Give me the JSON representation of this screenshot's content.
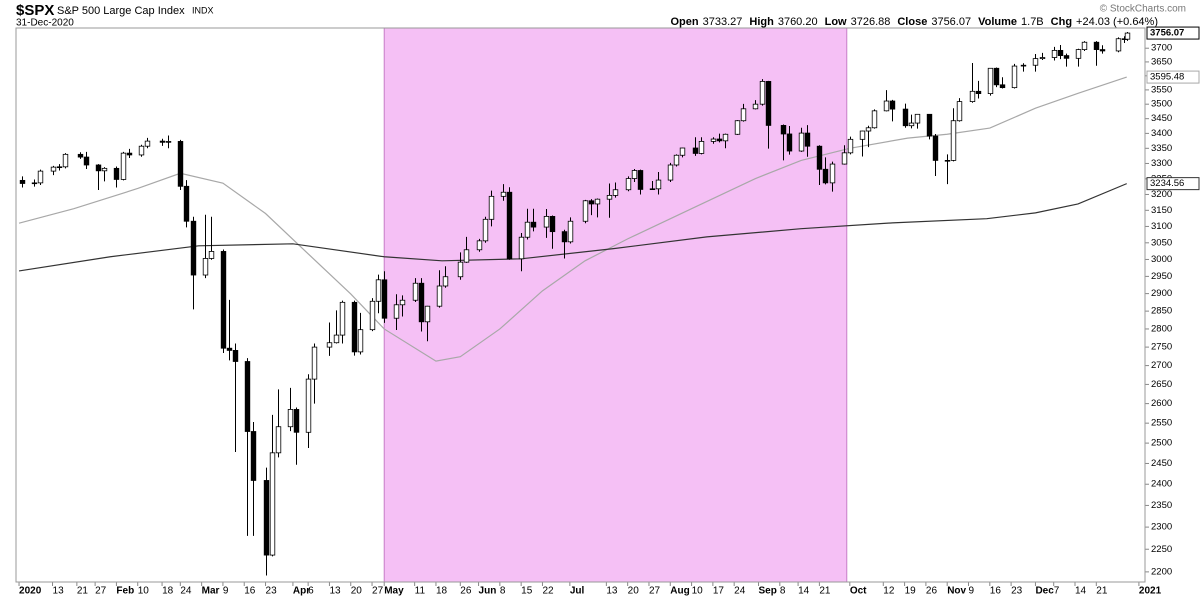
{
  "chart_data": {
    "type": "candlestick",
    "title": "$SPX",
    "subtitle": "S&P 500 Large Cap Index",
    "exchange": "INDX",
    "date": "31-Dec-2020",
    "copyright": "© StockCharts.com",
    "header": [
      {
        "label": "Open",
        "value": "3733.27"
      },
      {
        "label": "High",
        "value": "3760.20"
      },
      {
        "label": "Low",
        "value": "3726.88"
      },
      {
        "label": "Close",
        "value": "3756.07"
      },
      {
        "label": "Volume",
        "value": "1.7B"
      },
      {
        "label": "Chg",
        "value": "+24.03 (+0.64%)"
      }
    ],
    "log": true,
    "grid": false,
    "up_color": "#ffffff",
    "down_color": "#000000",
    "wick_color": "#000000",
    "highlight": {
      "from": "2020-05-01",
      "to": "2020-09-30",
      "color": "#f5c0f5"
    },
    "xlim": [
      "2020-01-01",
      "2021-01-06"
    ],
    "ylim": [
      2178,
      3775
    ],
    "yticks": [
      2200,
      2250,
      2300,
      2350,
      2400,
      2450,
      2500,
      2550,
      2600,
      2650,
      2700,
      2750,
      2800,
      2850,
      2900,
      2950,
      3000,
      3050,
      3100,
      3150,
      3200,
      3250,
      3300,
      3350,
      3400,
      3450,
      3500,
      3550,
      3600,
      3650,
      3700
    ],
    "xticks": [
      {
        "value": "2020-01-02",
        "label": "2020"
      },
      {
        "value": "2020-01-13",
        "label": "13"
      },
      {
        "value": "2020-01-21",
        "label": "21"
      },
      {
        "value": "2020-01-27",
        "label": "27"
      },
      {
        "value": "2020-02-03",
        "label": "Feb"
      },
      {
        "value": "2020-02-10",
        "label": "10"
      },
      {
        "value": "2020-02-18",
        "label": "18"
      },
      {
        "value": "2020-02-24",
        "label": "24"
      },
      {
        "value": "2020-03-02",
        "label": "Mar"
      },
      {
        "value": "2020-03-09",
        "label": "9"
      },
      {
        "value": "2020-03-16",
        "label": "16"
      },
      {
        "value": "2020-03-23",
        "label": "23"
      },
      {
        "value": "2020-04-01",
        "label": "Apr"
      },
      {
        "value": "2020-04-06",
        "label": "6"
      },
      {
        "value": "2020-04-13",
        "label": "13"
      },
      {
        "value": "2020-04-20",
        "label": "20"
      },
      {
        "value": "2020-04-27",
        "label": "27"
      },
      {
        "value": "2020-05-01",
        "label": "May"
      },
      {
        "value": "2020-05-11",
        "label": "11"
      },
      {
        "value": "2020-05-18",
        "label": "18"
      },
      {
        "value": "2020-05-26",
        "label": "26"
      },
      {
        "value": "2020-06-01",
        "label": "Jun"
      },
      {
        "value": "2020-06-08",
        "label": "8"
      },
      {
        "value": "2020-06-15",
        "label": "15"
      },
      {
        "value": "2020-06-22",
        "label": "22"
      },
      {
        "value": "2020-07-01",
        "label": "Jul"
      },
      {
        "value": "2020-07-13",
        "label": "13"
      },
      {
        "value": "2020-07-20",
        "label": "20"
      },
      {
        "value": "2020-07-27",
        "label": "27"
      },
      {
        "value": "2020-08-03",
        "label": "Aug"
      },
      {
        "value": "2020-08-10",
        "label": "10"
      },
      {
        "value": "2020-08-17",
        "label": "17"
      },
      {
        "value": "2020-08-24",
        "label": "24"
      },
      {
        "value": "2020-09-01",
        "label": "Sep"
      },
      {
        "value": "2020-09-08",
        "label": "8"
      },
      {
        "value": "2020-09-14",
        "label": "14"
      },
      {
        "value": "2020-09-21",
        "label": "21"
      },
      {
        "value": "2020-10-01",
        "label": "Oct"
      },
      {
        "value": "2020-10-12",
        "label": "12"
      },
      {
        "value": "2020-10-19",
        "label": "19"
      },
      {
        "value": "2020-10-26",
        "label": "26"
      },
      {
        "value": "2020-11-02",
        "label": "Nov"
      },
      {
        "value": "2020-11-09",
        "label": "9"
      },
      {
        "value": "2020-11-16",
        "label": "16"
      },
      {
        "value": "2020-11-23",
        "label": "23"
      },
      {
        "value": "2020-12-01",
        "label": "Dec"
      },
      {
        "value": "2020-12-07",
        "label": "7"
      },
      {
        "value": "2020-12-14",
        "label": "14"
      },
      {
        "value": "2020-12-21",
        "label": "21"
      },
      {
        "value": "2021-01-04",
        "label": "2021"
      }
    ],
    "x": [
      "2020-01-03",
      "2020-01-07",
      "2020-01-09",
      "2020-01-13",
      "2020-01-15",
      "2020-01-17",
      "2020-01-22",
      "2020-01-24",
      "2020-01-28",
      "2020-01-30",
      "2020-02-03",
      "2020-02-05",
      "2020-02-07",
      "2020-02-11",
      "2020-02-13",
      "2020-02-18",
      "2020-02-20",
      "2020-02-24",
      "2020-02-26",
      "2020-02-28",
      "2020-03-03",
      "2020-03-05",
      "2020-03-09",
      "2020-03-11",
      "2020-03-13",
      "2020-03-17",
      "2020-03-19",
      "2020-03-23",
      "2020-03-25",
      "2020-03-27",
      "2020-03-31",
      "2020-04-02",
      "2020-04-06",
      "2020-04-08",
      "2020-04-13",
      "2020-04-15",
      "2020-04-17",
      "2020-04-21",
      "2020-04-23",
      "2020-04-27",
      "2020-04-29",
      "2020-05-01",
      "2020-05-05",
      "2020-05-07",
      "2020-05-11",
      "2020-05-13",
      "2020-05-15",
      "2020-05-19",
      "2020-05-21",
      "2020-05-26",
      "2020-05-28",
      "2020-06-01",
      "2020-06-03",
      "2020-06-05",
      "2020-06-09",
      "2020-06-11",
      "2020-06-15",
      "2020-06-17",
      "2020-06-19",
      "2020-06-23",
      "2020-06-25",
      "2020-06-29",
      "2020-07-01",
      "2020-07-06",
      "2020-07-08",
      "2020-07-10",
      "2020-07-14",
      "2020-07-16",
      "2020-07-20",
      "2020-07-22",
      "2020-07-24",
      "2020-07-28",
      "2020-07-30",
      "2020-08-03",
      "2020-08-05",
      "2020-08-07",
      "2020-08-11",
      "2020-08-13",
      "2020-08-17",
      "2020-08-19",
      "2020-08-21",
      "2020-08-25",
      "2020-08-27",
      "2020-08-31",
      "2020-09-02",
      "2020-09-04",
      "2020-09-09",
      "2020-09-11",
      "2020-09-15",
      "2020-09-17",
      "2020-09-21",
      "2020-09-23",
      "2020-09-25",
      "2020-09-29",
      "2020-10-01",
      "2020-10-05",
      "2020-10-07",
      "2020-10-09",
      "2020-10-13",
      "2020-10-15",
      "2020-10-19",
      "2020-10-21",
      "2020-10-23",
      "2020-10-27",
      "2020-10-29",
      "2020-11-02",
      "2020-11-04",
      "2020-11-06",
      "2020-11-10",
      "2020-11-12",
      "2020-11-16",
      "2020-11-18",
      "2020-11-20",
      "2020-11-24",
      "2020-11-27",
      "2020-12-01",
      "2020-12-03",
      "2020-12-07",
      "2020-12-09",
      "2020-12-11",
      "2020-12-15",
      "2020-12-17",
      "2020-12-21",
      "2020-12-23",
      "2020-12-28",
      "2020-12-30",
      "2020-12-31"
    ],
    "open": [
      3245,
      3235,
      3237,
      3275,
      3288,
      3289,
      3330,
      3321,
      3295,
      3276,
      3284,
      3248,
      3334,
      3328,
      3357,
      3374,
      3370,
      3373,
      3226,
      3116,
      2954,
      3003,
      3024,
      2747,
      2741,
      2711,
      2529,
      2409,
      2237,
      2476,
      2541,
      2585,
      2527,
      2664,
      2750,
      2762,
      2783,
      2875,
      2737,
      2798,
      2878,
      2940,
      2830,
      2868,
      2881,
      2930,
      2820,
      2864,
      2922,
      2949,
      2992,
      3029,
      3056,
      3122,
      3194,
      3207,
      3002,
      3067,
      3113,
      3098,
      3131,
      3084,
      3053,
      3116,
      3180,
      3170,
      3185,
      3197,
      3215,
      3251,
      3277,
      3216,
      3218,
      3246,
      3295,
      3327,
      3351,
      3333,
      3373,
      3381,
      3375,
      3397,
      3443,
      3484,
      3500,
      3580,
      3427,
      3398,
      3341,
      3401,
      3357,
      3281,
      3237,
      3298,
      3335,
      3380,
      3408,
      3419,
      3477,
      3511,
      3483,
      3426,
      3435,
      3465,
      3391,
      3310,
      3310,
      3443,
      3509,
      3545,
      3537,
      3627,
      3568,
      3558,
      3635,
      3638,
      3662,
      3666,
      3692,
      3673,
      3663,
      3695,
      3722,
      3695,
      3690,
      3735,
      3733.27
    ],
    "high": [
      3258,
      3248,
      3280,
      3292,
      3298,
      3334,
      3337,
      3338,
      3298,
      3288,
      3290,
      3338,
      3348,
      3362,
      3385,
      3382,
      3393,
      3378,
      3246,
      3130,
      3136,
      3130,
      3030,
      2882,
      2760,
      2720,
      2553,
      2440,
      2571,
      2637,
      2641,
      2590,
      2677,
      2760,
      2818,
      2852,
      2880,
      2880,
      2845,
      2887,
      2955,
      2965,
      2898,
      2895,
      2945,
      2945,
      2865,
      2968,
      2980,
      3021,
      3068,
      3062,
      3130,
      3212,
      3233,
      3223,
      3080,
      3155,
      3155,
      3154,
      3134,
      3090,
      3128,
      3183,
      3185,
      3187,
      3235,
      3238,
      3258,
      3282,
      3280,
      3243,
      3272,
      3302,
      3330,
      3352,
      3387,
      3387,
      3387,
      3399,
      3399,
      3445,
      3501,
      3514,
      3588,
      3582,
      3430,
      3425,
      3419,
      3428,
      3360,
      3320,
      3306,
      3360,
      3389,
      3409,
      3426,
      3482,
      3549,
      3515,
      3502,
      3464,
      3466,
      3466,
      3398,
      3330,
      3486,
      3521,
      3646,
      3582,
      3628,
      3630,
      3595,
      3643,
      3645,
      3679,
      3683,
      3705,
      3712,
      3680,
      3698,
      3726,
      3726,
      3711,
      3740,
      3744,
      3760.2
    ],
    "low": [
      3222,
      3225,
      3230,
      3262,
      3277,
      3284,
      3315,
      3282,
      3214,
      3242,
      3222,
      3245,
      3318,
      3322,
      3350,
      3358,
      3350,
      3214,
      3097,
      2855,
      2945,
      2999,
      2734,
      2714,
      2478,
      2280,
      2280,
      2192,
      2234,
      2465,
      2530,
      2447,
      2488,
      2600,
      2726,
      2760,
      2760,
      2727,
      2730,
      2794,
      2844,
      2817,
      2797,
      2835,
      2876,
      2793,
      2766,
      2860,
      2917,
      2940,
      2990,
      3023,
      3050,
      3100,
      3180,
      2999,
      2965,
      3060,
      3085,
      3065,
      3032,
      3003,
      3048,
      3110,
      3135,
      3128,
      3127,
      3190,
      3210,
      3240,
      3200,
      3214,
      3200,
      3240,
      3290,
      3320,
      3325,
      3330,
      3365,
      3370,
      3350,
      3395,
      3440,
      3482,
      3495,
      3349,
      3310,
      3329,
      3338,
      3322,
      3230,
      3232,
      3209,
      3296,
      3330,
      3323,
      3354,
      3416,
      3475,
      3441,
      3419,
      3417,
      3416,
      3380,
      3259,
      3233,
      3307,
      3440,
      3505,
      3520,
      3530,
      3560,
      3555,
      3555,
      3615,
      3615,
      3657,
      3655,
      3660,
      3633,
      3633,
      3690,
      3636,
      3680,
      3685,
      3719,
      3726.88
    ],
    "close": [
      3235,
      3237,
      3275,
      3288,
      3289,
      3330,
      3321,
      3295,
      3276,
      3284,
      3248,
      3334,
      3328,
      3357,
      3374,
      3370,
      3373,
      3226,
      3116,
      2954,
      3003,
      3024,
      2747,
      2741,
      2711,
      2529,
      2409,
      2237,
      2476,
      2541,
      2585,
      2527,
      2664,
      2750,
      2762,
      2783,
      2875,
      2737,
      2798,
      2878,
      2940,
      2830,
      2868,
      2881,
      2930,
      2820,
      2864,
      2922,
      2949,
      2992,
      3029,
      3056,
      3122,
      3194,
      3207,
      3002,
      3067,
      3113,
      3098,
      3131,
      3084,
      3053,
      3116,
      3180,
      3170,
      3185,
      3197,
      3215,
      3251,
      3277,
      3216,
      3218,
      3246,
      3295,
      3327,
      3351,
      3333,
      3373,
      3381,
      3375,
      3397,
      3443,
      3484,
      3500,
      3580,
      3427,
      3398,
      3341,
      3401,
      3357,
      3281,
      3237,
      3298,
      3335,
      3380,
      3408,
      3419,
      3477,
      3511,
      3483,
      3426,
      3435,
      3465,
      3391,
      3310,
      3310,
      3443,
      3509,
      3545,
      3537,
      3627,
      3568,
      3558,
      3635,
      3638,
      3662,
      3666,
      3692,
      3673,
      3663,
      3695,
      3722,
      3695,
      3690,
      3735,
      3732,
      3756.07
    ],
    "last_label": "3756.07",
    "ma": [
      {
        "color": "#a8a8a8",
        "x": [
          "2020-01-02",
          "2020-01-20",
          "2020-02-10",
          "2020-02-24",
          "2020-03-09",
          "2020-03-23",
          "2020-04-06",
          "2020-04-20",
          "2020-05-01",
          "2020-05-18",
          "2020-05-26",
          "2020-06-08",
          "2020-06-22",
          "2020-07-06",
          "2020-07-20",
          "2020-08-10",
          "2020-08-31",
          "2020-09-15",
          "2020-10-01",
          "2020-10-20",
          "2020-11-02",
          "2020-11-16",
          "2020-12-01",
          "2020-12-15",
          "2020-12-31"
        ],
        "values": [
          3110,
          3155,
          3219,
          3268,
          3236,
          3140,
          3017,
          2899,
          2800,
          2712,
          2724,
          2800,
          2908,
          2996,
          3062,
          3155,
          3251,
          3310,
          3350,
          3384,
          3397,
          3418,
          3486,
          3538,
          3595.48
        ],
        "last_label": "3595.48"
      },
      {
        "color": "#333333",
        "x": [
          "2020-01-02",
          "2020-02-01",
          "2020-03-01",
          "2020-04-01",
          "2020-05-01",
          "2020-05-20",
          "2020-06-15",
          "2020-07-15",
          "2020-08-15",
          "2020-09-15",
          "2020-10-15",
          "2020-11-15",
          "2020-12-01",
          "2020-12-15",
          "2020-12-31"
        ],
        "values": [
          2966,
          3008,
          3041,
          3047,
          3008,
          2996,
          3002,
          3032,
          3068,
          3093,
          3111,
          3124,
          3142,
          3170,
          3234.56
        ],
        "last_label": "3234.56"
      }
    ]
  }
}
